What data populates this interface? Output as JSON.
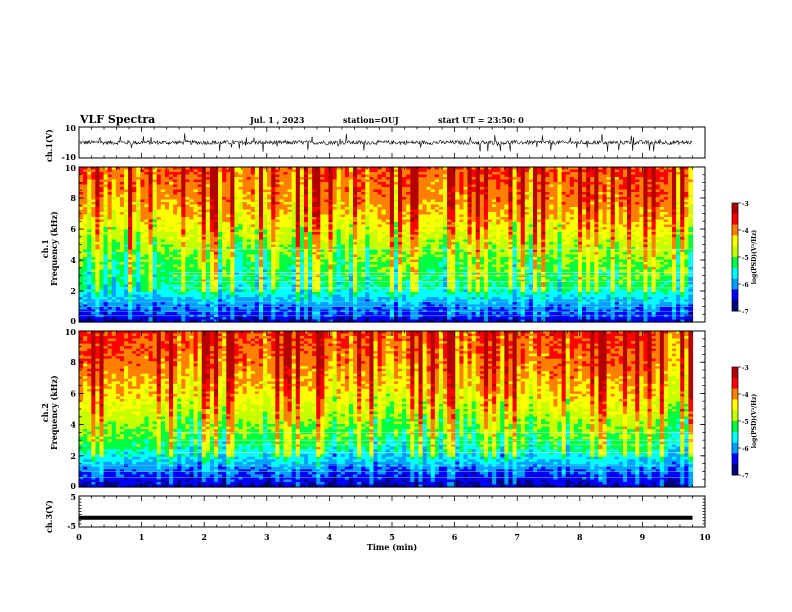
{
  "header": {
    "title": "VLF Spectra",
    "date": "Jul. 1 , 2023",
    "station": "station=OUJ",
    "start": "start UT = 23:50: 0"
  },
  "labels": {
    "ch1_wave": "ch.1(V)",
    "ch1_spec_line1": "ch.1",
    "ch1_spec_line2": "Frequency (kHz)",
    "ch2_spec_line1": "ch.2",
    "ch2_spec_line2": "Frequency (kHz)",
    "ch3_wave": "ch.3(V)",
    "x_axis": "Time (min)",
    "colorbar": "log(PSD)(V²/Hz)"
  },
  "colors": {
    "palette": [
      "#000080",
      "#0000ff",
      "#00a0ff",
      "#00ffff",
      "#00ff40",
      "#c8ff00",
      "#ffff00",
      "#ff8000",
      "#ff0000",
      "#b40000"
    ],
    "trace": "#000000"
  },
  "chart_data": [
    {
      "type": "line",
      "name": "ch.1 waveform",
      "ylabel": "ch.1(V)",
      "ylim": [
        -10,
        10
      ],
      "yticks": [
        10,
        -10
      ],
      "xlim": [
        0,
        10
      ],
      "baseline": 0,
      "trace": "noisy broadband signal around 0 V, amplitude about ±1.5 V with spikes up to ±6 V"
    },
    {
      "type": "heatmap",
      "name": "ch.1 spectrogram",
      "ylabel": "Frequency (kHz)",
      "xlabel": "",
      "xlim": [
        0,
        9.8
      ],
      "ylim": [
        0,
        10
      ],
      "yticks": [
        0,
        2,
        4,
        6,
        8,
        10
      ],
      "colorbar": {
        "label": "log(PSD)(V²/Hz)",
        "range": [
          -7,
          -3
        ],
        "ticks": [
          -3,
          -4,
          -5,
          -6,
          -7
        ]
      },
      "freq_profile_kHz": [
        0,
        0.5,
        1,
        1.5,
        2,
        2.5,
        3,
        3.5,
        4,
        5,
        6,
        7,
        8,
        9,
        10
      ],
      "level_profile": [
        -6.6,
        -6.3,
        -6.1,
        -5.8,
        -5.5,
        -5.3,
        -5.2,
        -5.15,
        -5.1,
        -4.8,
        -4.5,
        -4.2,
        -4.0,
        -3.9,
        -3.8
      ],
      "narrowband_lines_kHz": [
        0.4,
        0.7,
        1.0,
        1.3,
        2.2,
        2.6,
        3.0,
        3.2,
        4.7
      ]
    },
    {
      "type": "heatmap",
      "name": "ch.2 spectrogram",
      "ylabel": "Frequency (kHz)",
      "xlabel": "",
      "xlim": [
        0,
        9.8
      ],
      "ylim": [
        0,
        10
      ],
      "yticks": [
        0,
        2,
        4,
        6,
        8,
        10
      ],
      "colorbar": {
        "label": "log(PSD)(V²/Hz)",
        "range": [
          -7,
          -3
        ],
        "ticks": [
          -3,
          -4,
          -5,
          -6,
          -7
        ]
      },
      "freq_profile_kHz": [
        0,
        0.5,
        1,
        1.5,
        2,
        2.5,
        3,
        3.5,
        4,
        5,
        6,
        7,
        8,
        9,
        10
      ],
      "level_profile": [
        -6.7,
        -6.4,
        -6.2,
        -5.9,
        -5.6,
        -5.3,
        -5.15,
        -5.0,
        -4.9,
        -4.6,
        -4.3,
        -4.1,
        -3.9,
        -3.8,
        -3.7
      ],
      "narrowband_lines_kHz": [
        0.6,
        1.0,
        1.4,
        2.2,
        2.7,
        3.0,
        3.5
      ]
    },
    {
      "type": "line",
      "name": "ch.3 waveform",
      "ylabel": "ch.3(V)",
      "xlabel": "Time (min)",
      "ylim": [
        -5,
        5
      ],
      "yticks": [
        5,
        -5
      ],
      "xlim": [
        0,
        10
      ],
      "xticks": [
        0,
        1,
        2,
        3,
        4,
        5,
        6,
        7,
        8,
        9,
        10
      ],
      "constant_value": -2
    }
  ]
}
